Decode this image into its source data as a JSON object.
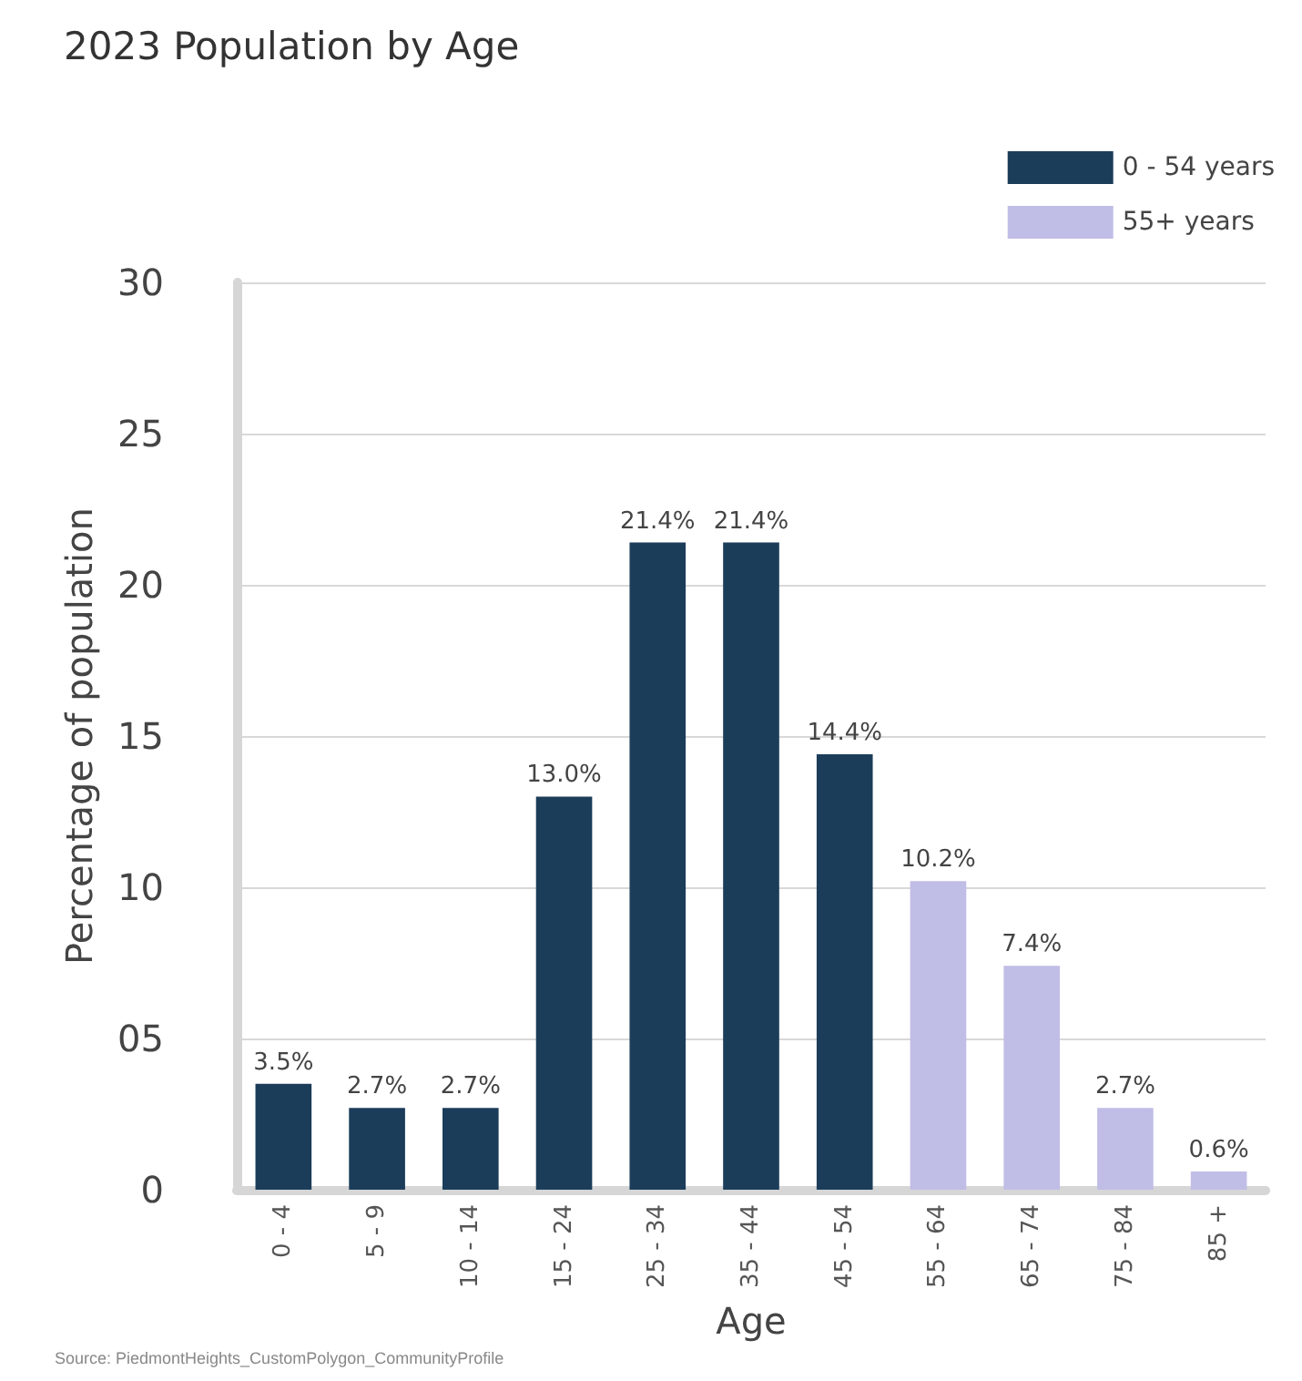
{
  "chart_data": {
    "type": "bar",
    "title": "2023 Population by Age",
    "xlabel": "Age",
    "ylabel": "Percentage of population",
    "categories": [
      "0 - 4",
      "5 - 9",
      "10 - 14",
      "15 - 24",
      "25 - 34",
      "35 - 44",
      "45 - 54",
      "55 - 64",
      "65 - 74",
      "75 - 84",
      "85 +"
    ],
    "series": [
      {
        "name": "0 - 54 years",
        "color": "#1c3d5a",
        "values": [
          3.5,
          2.7,
          2.7,
          13.0,
          21.4,
          21.4,
          14.4,
          null,
          null,
          null,
          null
        ],
        "value_labels": [
          "3.5%",
          "2.7%",
          "2.7%",
          "13.0%",
          "21.4%",
          "21.4%",
          "14.4%",
          null,
          null,
          null,
          null
        ]
      },
      {
        "name": "55+ years",
        "color": "#c0bde6",
        "values": [
          null,
          null,
          null,
          null,
          null,
          null,
          null,
          10.2,
          7.4,
          2.7,
          0.6
        ],
        "value_labels": [
          null,
          null,
          null,
          null,
          null,
          null,
          null,
          "10.2%",
          "7.4%",
          "2.7%",
          "0.6%"
        ]
      }
    ],
    "ylim": [
      0,
      30
    ],
    "yticks": [
      0,
      {
        "value": 5,
        "label": "05"
      },
      10,
      15,
      20,
      25,
      30
    ],
    "grid": "y",
    "legend": "top right",
    "annotations": [
      "Source: PiedmontHeights_CustomPolygon_CommunityProfile"
    ]
  }
}
